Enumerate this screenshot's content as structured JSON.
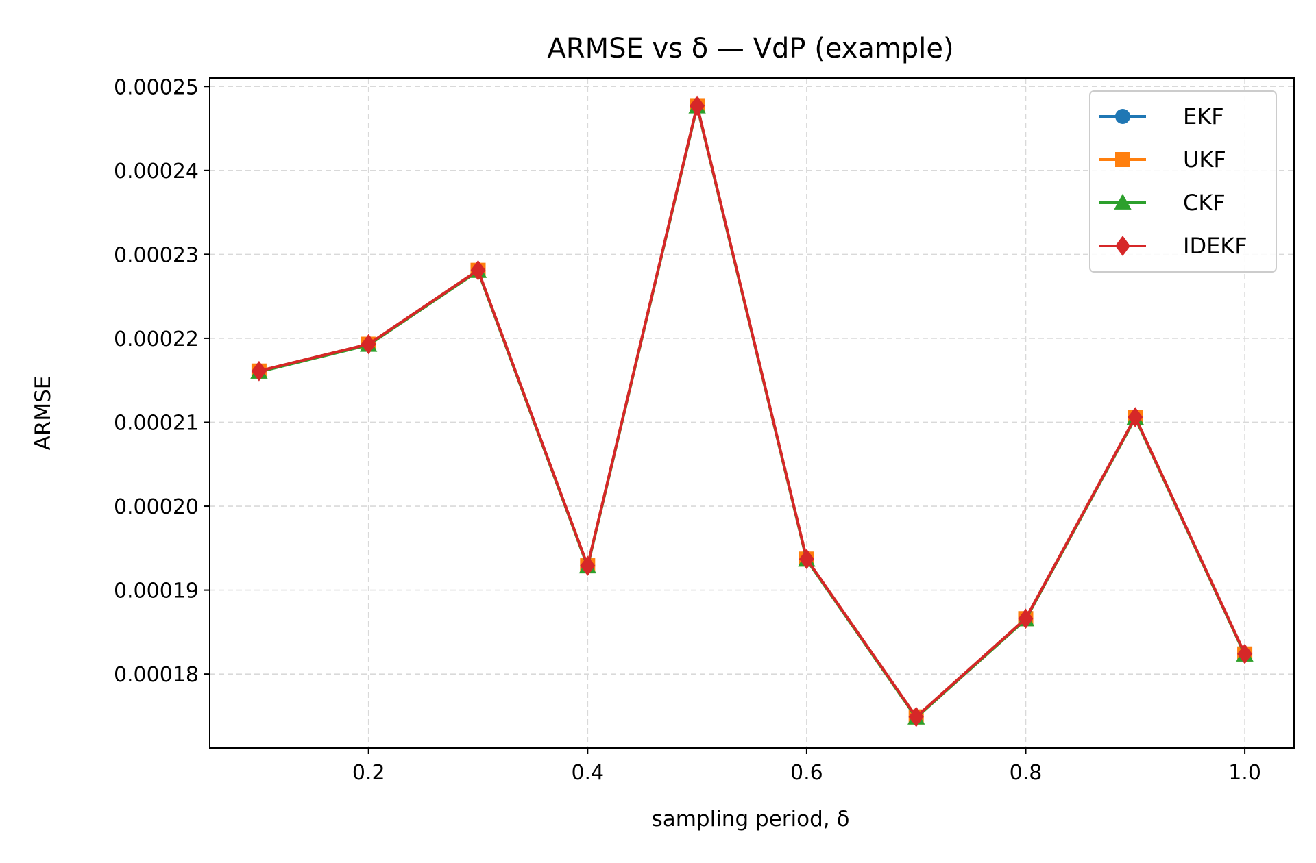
{
  "chart_data": {
    "type": "line",
    "title": "ARMSE vs δ — VdP (example)",
    "xlabel": "sampling period, δ",
    "ylabel": "ARMSE",
    "x": [
      0.1,
      0.2,
      0.3,
      0.4,
      0.5,
      0.6,
      0.7,
      0.8,
      0.9,
      1.0
    ],
    "xlim": [
      0.055,
      1.045
    ],
    "ylim": [
      0.0001712,
      0.000251
    ],
    "x_ticks": [
      0.2,
      0.4,
      0.6,
      0.8,
      1.0
    ],
    "x_tick_labels": [
      "0.2",
      "0.4",
      "0.6",
      "0.8",
      "1.0"
    ],
    "y_ticks": [
      0.00018,
      0.00019,
      0.0002,
      0.00021,
      0.00022,
      0.00023,
      0.00024,
      0.00025
    ],
    "y_tick_labels": [
      "0.00018",
      "0.00019",
      "0.00020",
      "0.00021",
      "0.00022",
      "0.00023",
      "0.00024",
      "0.00025"
    ],
    "grid": true,
    "legend_position": "top-right",
    "series": [
      {
        "name": "EKF",
        "color": "#1f77b4",
        "marker": "circle",
        "values": [
          0.0002161,
          0.0002193,
          0.0002281,
          0.0001929,
          0.0002477,
          0.0001937,
          0.0001749,
          0.0001866,
          0.0002106,
          0.0001824
        ]
      },
      {
        "name": "UKF",
        "color": "#ff7f0e",
        "marker": "square",
        "values": [
          0.0002161,
          0.0002193,
          0.0002281,
          0.0001929,
          0.0002477,
          0.0001937,
          0.0001749,
          0.0001866,
          0.0002106,
          0.0001824
        ]
      },
      {
        "name": "CKF",
        "color": "#2ca02c",
        "marker": "triangle",
        "values": [
          0.000216,
          0.0002192,
          0.000228,
          0.0001928,
          0.0002476,
          0.0001936,
          0.0001748,
          0.0001865,
          0.0002105,
          0.0001823
        ]
      },
      {
        "name": "IDEKF",
        "color": "#d62728",
        "marker": "diamond",
        "values": [
          0.0002161,
          0.0002193,
          0.0002281,
          0.0001929,
          0.0002477,
          0.0001937,
          0.0001749,
          0.0001866,
          0.0002106,
          0.0001824
        ]
      }
    ]
  }
}
